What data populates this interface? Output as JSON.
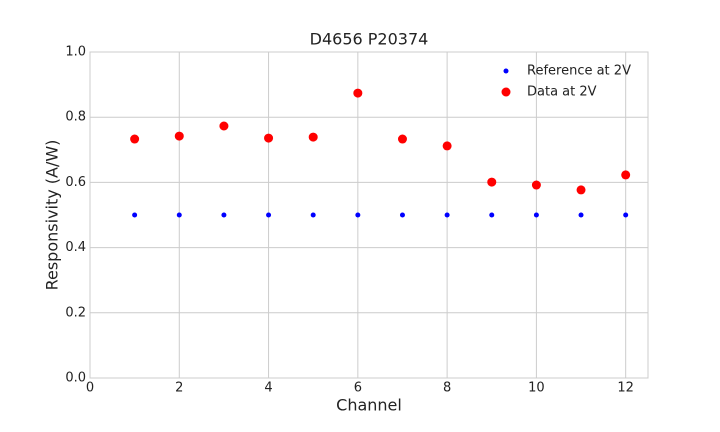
{
  "chart_data": {
    "type": "scatter",
    "title": "D4656 P20374",
    "x_label": "Channel",
    "y_label": "Responsivity (A/W)",
    "x": [
      1,
      2,
      3,
      4,
      5,
      6,
      7,
      8,
      9,
      10,
      11,
      12
    ],
    "series": [
      {
        "name": "Reference at 2V",
        "color": "#0000ff",
        "values": [
          0.5,
          0.5,
          0.5,
          0.5,
          0.5,
          0.5,
          0.5,
          0.5,
          0.5,
          0.5,
          0.5,
          0.5
        ]
      },
      {
        "name": "Data at 2V",
        "color": "#ff0000",
        "values": [
          0.733,
          0.742,
          0.773,
          0.736,
          0.739,
          0.874,
          0.733,
          0.712,
          0.601,
          0.592,
          0.577,
          0.623
        ]
      }
    ],
    "xlim": [
      0,
      12.5
    ],
    "ylim": [
      0,
      1
    ],
    "xticks": [
      0,
      2,
      4,
      6,
      8,
      10,
      12
    ],
    "yticks": [
      {
        "value": 0,
        "label": "0.0"
      },
      {
        "value": 0.2,
        "label": "0.2"
      },
      {
        "value": 0.4,
        "label": "0.4"
      },
      {
        "value": 0.6,
        "label": "0.6"
      },
      {
        "value": 0.8,
        "label": "0.8"
      },
      {
        "value": 1,
        "label": "1.0"
      }
    ],
    "grid": true,
    "legend": "upper right"
  }
}
